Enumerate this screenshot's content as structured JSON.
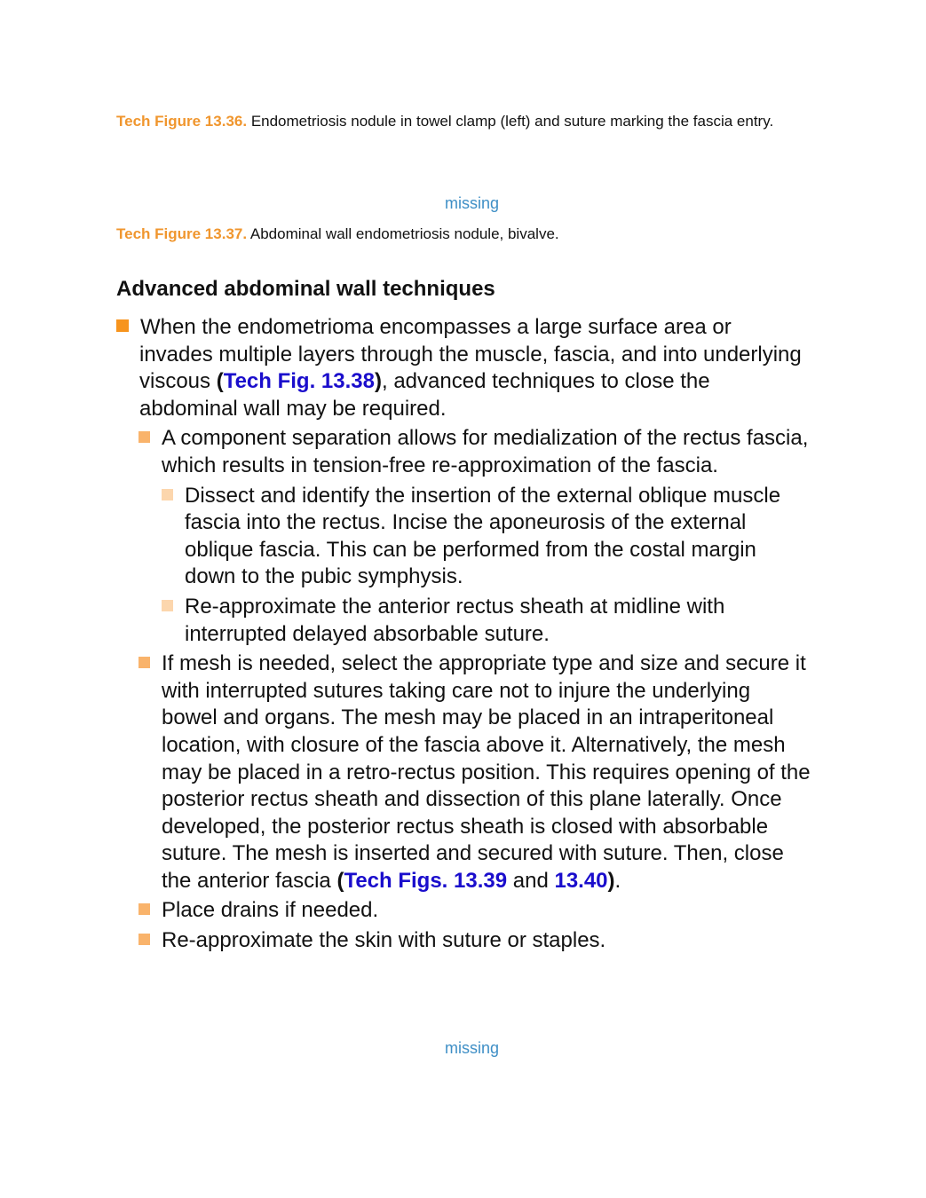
{
  "captions": [
    {
      "label": "Tech Figure 13.36.",
      "text": "Endometriosis nodule in towel clamp (left) and suture marking the fascia entry."
    },
    {
      "label": "Tech Figure 13.37.",
      "text": "Abdominal wall endometriosis nodule, bivalve."
    }
  ],
  "placeholders": [
    "missing",
    "missing"
  ],
  "section": {
    "heading": "Advanced abdominal wall techniques",
    "items": [
      {
        "parts": [
          "When the endometrioma encompasses a large surface area or invades multiple layers through the muscle, fascia, and into underlying viscous ",
          "(",
          "Tech Fig. 13.38",
          ")",
          ", advanced techniques to close the abdominal wall may be required."
        ],
        "items": [
          {
            "parts": [
              "A component separation allows for medialization of the rectus fascia, which results in tension-free re-approximation of the fascia."
            ],
            "items": [
              {
                "parts": [
                  "Dissect and identify the insertion of the external oblique muscle fascia into the rectus. Incise the aponeurosis of the external oblique fascia. This can be performed from the costal margin down to the pubic symphysis."
                ]
              },
              {
                "parts": [
                  "Re-approximate the anterior rectus sheath at midline with interrupted delayed absorbable suture."
                ]
              }
            ]
          },
          {
            "parts": [
              "If mesh is needed, select the appropriate type and size and secure it with interrupted sutures taking care not to injure the underlying bowel and organs. The mesh may be placed in an intraperitoneal location, with closure of the fascia above it. Alternatively, the mesh may be placed in a retro-rectus position. This requires opening of the posterior rectus sheath and dissection of this plane laterally. Once developed, the posterior rectus sheath is closed with absorbable suture. The mesh is inserted and secured with suture. Then, close the anterior fascia ",
              "(",
              "Tech Figs. 13.39",
              " and ",
              "13.40",
              ")",
              "."
            ]
          },
          {
            "parts": [
              "Place drains if needed."
            ]
          },
          {
            "parts": [
              "Re-approximate the skin with suture or staples."
            ]
          }
        ]
      }
    ]
  }
}
